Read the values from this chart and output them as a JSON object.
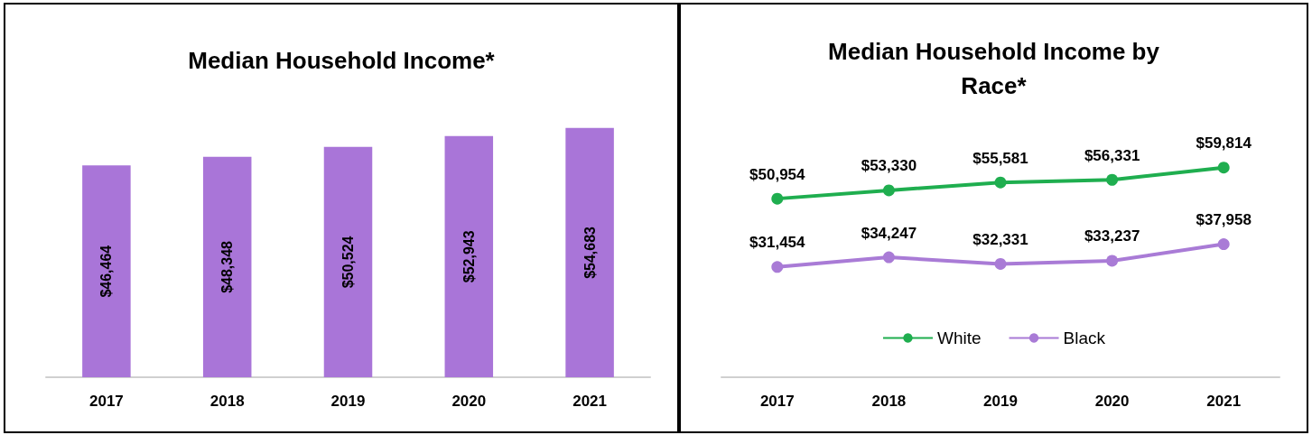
{
  "chart_data": [
    {
      "type": "bar",
      "title": "Median Household Income*",
      "categories": [
        "2017",
        "2018",
        "2019",
        "2020",
        "2021"
      ],
      "values": [
        46464,
        48348,
        50524,
        52943,
        54683
      ],
      "value_labels": [
        "$46,464",
        "$48,348",
        "$50,524",
        "$52,943",
        "$54,683"
      ],
      "color": "#a975d8",
      "grid": false
    },
    {
      "type": "line",
      "title": "Median Household Income by\nRace*",
      "categories": [
        "2017",
        "2018",
        "2019",
        "2020",
        "2021"
      ],
      "legend": "bottom",
      "marker": "circle",
      "grid": false,
      "series": [
        {
          "name": "White",
          "color": "#1fae4f",
          "values": [
            50954,
            53330,
            55581,
            56331,
            59814
          ],
          "value_labels": [
            "$50,954",
            "$53,330",
            "$55,581",
            "$56,331",
            "$59,814"
          ]
        },
        {
          "name": "Black",
          "color": "#a97bd6",
          "values": [
            31454,
            34247,
            32331,
            33237,
            37958
          ],
          "value_labels": [
            "$31,454",
            "$34,247",
            "$32,331",
            "$33,237",
            "$37,958"
          ]
        }
      ]
    }
  ]
}
